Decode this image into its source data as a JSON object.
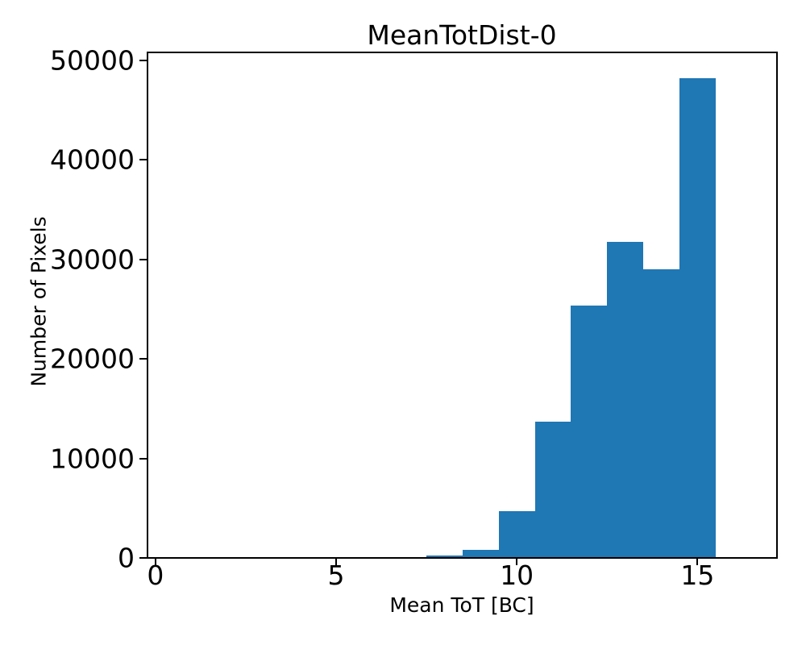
{
  "chart_data": {
    "type": "bar",
    "chart_kind": "histogram",
    "title": "MeanTotDist-0",
    "xlabel": "Mean ToT [BC]",
    "ylabel": "Number of Pixels",
    "bin_edges": [
      7.5,
      8.5,
      9.5,
      10.5,
      11.5,
      12.5,
      13.5,
      14.5,
      15.5
    ],
    "bin_centers": [
      8,
      9,
      10,
      11,
      12,
      13,
      14,
      15
    ],
    "counts": [
      250,
      850,
      4700,
      13700,
      25400,
      31800,
      29000,
      48200
    ],
    "xticks": [
      0,
      5,
      10,
      15
    ],
    "yticks": [
      0,
      10000,
      20000,
      30000,
      40000,
      50000
    ],
    "xlim": [
      -0.22,
      17.2
    ],
    "ylim": [
      0,
      50800
    ],
    "grid": false,
    "legend_position": "none",
    "bar_color": "#1f77b4",
    "axis_color": "#000000",
    "background_color": "#ffffff"
  }
}
